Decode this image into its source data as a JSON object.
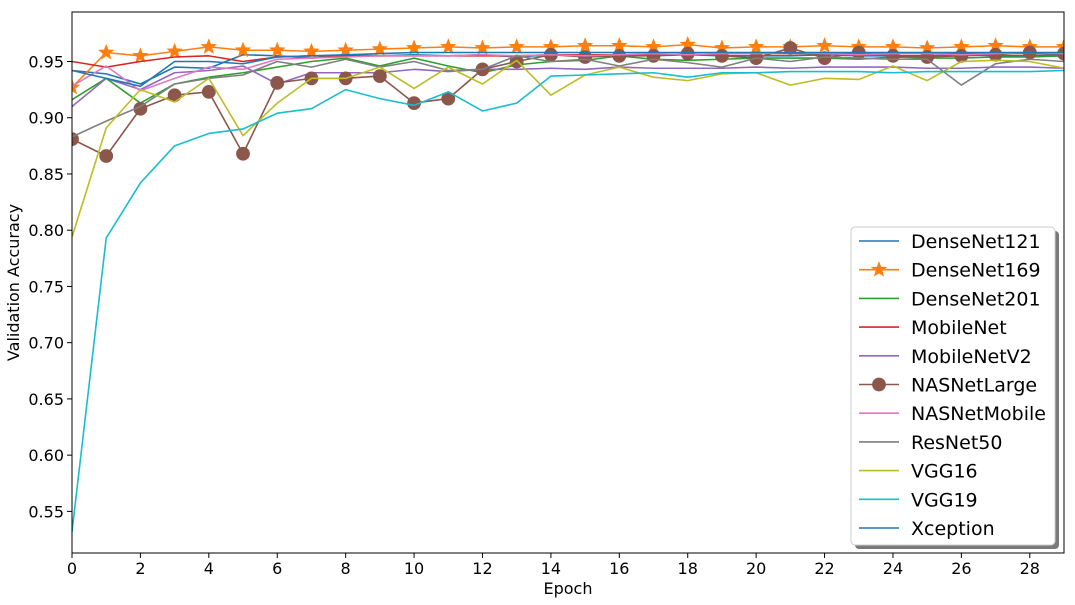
{
  "chart_data": {
    "type": "line",
    "title": "",
    "xlabel": "Epoch",
    "ylabel": "Validation Accuracy",
    "xlim": [
      0,
      29
    ],
    "ylim": [
      0.513,
      0.994
    ],
    "xticks": [
      0,
      2,
      4,
      6,
      8,
      10,
      12,
      14,
      16,
      18,
      20,
      22,
      24,
      26,
      28
    ],
    "yticks": [
      0.55,
      0.6,
      0.65,
      0.7,
      0.75,
      0.8,
      0.85,
      0.9,
      0.95
    ],
    "legend_position": "lower-right",
    "x": [
      0,
      1,
      2,
      3,
      4,
      5,
      6,
      7,
      8,
      9,
      10,
      11,
      12,
      13,
      14,
      15,
      16,
      17,
      18,
      19,
      20,
      21,
      22,
      23,
      24,
      25,
      26,
      27,
      28,
      29
    ],
    "series": [
      {
        "name": "DenseNet121",
        "color": "#1f77b4",
        "marker": "none",
        "values": [
          0.942,
          0.939,
          0.93,
          0.945,
          0.944,
          0.956,
          0.955,
          0.953,
          0.956,
          0.955,
          0.956,
          0.955,
          0.956,
          0.954,
          0.956,
          0.955,
          0.956,
          0.955,
          0.956,
          0.955,
          0.955,
          0.955,
          0.956,
          0.955,
          0.955,
          0.955,
          0.956,
          0.955,
          0.955,
          0.956
        ]
      },
      {
        "name": "DenseNet169",
        "color": "#ff7f0e",
        "marker": "star",
        "values": [
          0.927,
          0.958,
          0.955,
          0.959,
          0.963,
          0.96,
          0.96,
          0.959,
          0.96,
          0.961,
          0.962,
          0.963,
          0.962,
          0.963,
          0.963,
          0.964,
          0.964,
          0.963,
          0.965,
          0.962,
          0.963,
          0.963,
          0.964,
          0.963,
          0.963,
          0.962,
          0.963,
          0.964,
          0.963,
          0.963
        ]
      },
      {
        "name": "DenseNet201",
        "color": "#2ca02c",
        "marker": "none",
        "values": [
          0.916,
          0.935,
          0.913,
          0.93,
          0.936,
          0.94,
          0.945,
          0.95,
          0.953,
          0.946,
          0.953,
          0.946,
          0.94,
          0.947,
          0.95,
          0.951,
          0.955,
          0.952,
          0.951,
          0.952,
          0.953,
          0.953,
          0.953,
          0.952,
          0.954,
          0.953,
          0.953,
          0.954,
          0.954,
          0.955
        ]
      },
      {
        "name": "MobileNet",
        "color": "#d62728",
        "marker": "none",
        "values": [
          0.95,
          0.945,
          0.95,
          0.954,
          0.955,
          0.95,
          0.954,
          0.955,
          0.955,
          0.955,
          0.955,
          0.955,
          0.955,
          0.955,
          0.956,
          0.956,
          0.956,
          0.956,
          0.956,
          0.957,
          0.957,
          0.957,
          0.957,
          0.957,
          0.957,
          0.957,
          0.957,
          0.957,
          0.957,
          0.957
        ]
      },
      {
        "name": "MobileNetV2",
        "color": "#9467bd",
        "marker": "none",
        "values": [
          0.91,
          0.935,
          0.925,
          0.94,
          0.942,
          0.946,
          0.93,
          0.94,
          0.94,
          0.94,
          0.943,
          0.941,
          0.943,
          0.943,
          0.944,
          0.943,
          0.945,
          0.944,
          0.944,
          0.944,
          0.945,
          0.944,
          0.945,
          0.945,
          0.945,
          0.944,
          0.944,
          0.945,
          0.945,
          0.944
        ]
      },
      {
        "name": "NASNetLarge",
        "color": "#8c564b",
        "marker": "circle",
        "values": [
          0.881,
          0.866,
          0.908,
          0.92,
          0.923,
          0.868,
          0.931,
          0.935,
          0.935,
          0.937,
          0.913,
          0.917,
          0.943,
          0.95,
          0.956,
          0.954,
          0.955,
          0.955,
          0.957,
          0.955,
          0.953,
          0.962,
          0.953,
          0.958,
          0.955,
          0.954,
          0.955,
          0.956,
          0.958,
          0.957
        ]
      },
      {
        "name": "NASNetMobile",
        "color": "#e377c2",
        "marker": "none",
        "values": [
          0.928,
          0.946,
          0.924,
          0.935,
          0.945,
          0.943,
          0.952,
          0.953,
          0.954,
          0.955,
          0.955,
          0.955,
          0.956,
          0.955,
          0.956,
          0.955,
          0.956,
          0.957,
          0.956,
          0.957,
          0.957,
          0.958,
          0.957,
          0.956,
          0.957,
          0.957,
          0.956,
          0.957,
          0.958,
          0.957
        ]
      },
      {
        "name": "ResNet50",
        "color": "#7f7f7f",
        "marker": "none",
        "values": [
          0.883,
          0.897,
          0.91,
          0.93,
          0.935,
          0.938,
          0.95,
          0.945,
          0.952,
          0.945,
          0.95,
          0.942,
          0.943,
          0.955,
          0.95,
          0.952,
          0.946,
          0.952,
          0.949,
          0.945,
          0.953,
          0.95,
          0.954,
          0.953,
          0.952,
          0.952,
          0.929,
          0.948,
          0.952,
          0.95
        ]
      },
      {
        "name": "VGG16",
        "color": "#bcbd22",
        "marker": "none",
        "values": [
          0.794,
          0.891,
          0.925,
          0.914,
          0.935,
          0.884,
          0.913,
          0.935,
          0.935,
          0.945,
          0.926,
          0.945,
          0.93,
          0.951,
          0.92,
          0.938,
          0.945,
          0.936,
          0.933,
          0.939,
          0.94,
          0.929,
          0.935,
          0.934,
          0.946,
          0.933,
          0.95,
          0.951,
          0.95,
          0.944
        ]
      },
      {
        "name": "VGG19",
        "color": "#17becf",
        "marker": "none",
        "values": [
          0.532,
          0.793,
          0.842,
          0.875,
          0.886,
          0.89,
          0.904,
          0.908,
          0.925,
          0.917,
          0.911,
          0.923,
          0.906,
          0.913,
          0.937,
          0.938,
          0.939,
          0.94,
          0.936,
          0.94,
          0.94,
          0.941,
          0.941,
          0.941,
          0.94,
          0.941,
          0.941,
          0.941,
          0.941,
          0.942
        ]
      },
      {
        "name": "Xception",
        "color": "#1f77b4",
        "marker": "none",
        "values": [
          0.942,
          0.935,
          0.928,
          0.95,
          0.95,
          0.948,
          0.954,
          0.955,
          0.956,
          0.957,
          0.958,
          0.958,
          0.958,
          0.958,
          0.958,
          0.958,
          0.958,
          0.958,
          0.958,
          0.958,
          0.958,
          0.958,
          0.958,
          0.958,
          0.958,
          0.958,
          0.958,
          0.958,
          0.958,
          0.958
        ]
      }
    ]
  }
}
